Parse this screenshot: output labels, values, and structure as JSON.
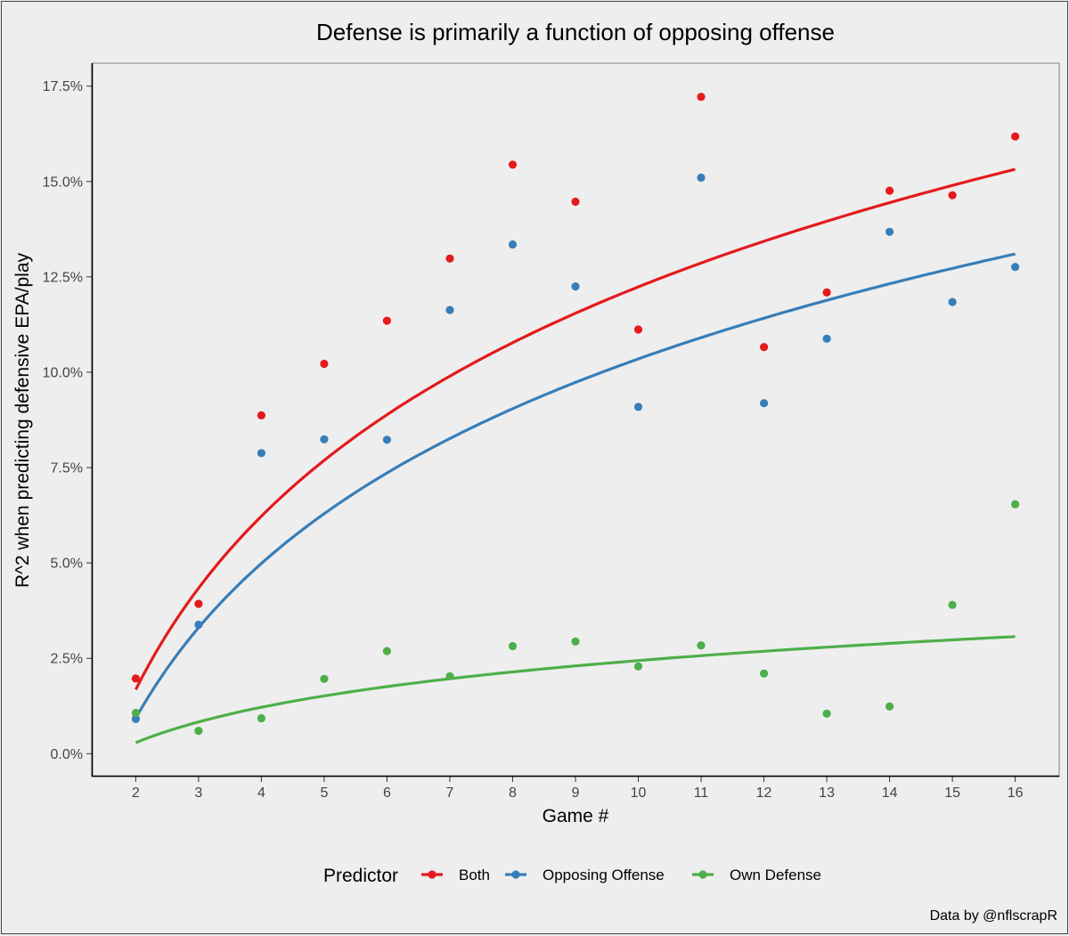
{
  "chart_data": {
    "type": "scatter",
    "title": "Defense is primarily a function of opposing offense",
    "xlabel": "Game #",
    "ylabel": "R^2 when predicting defensive EPA/play",
    "caption": "Data by @nflscrapR",
    "legend": {
      "title": "Predictor",
      "position": "bottom"
    },
    "xlim": [
      1.3,
      16.7
    ],
    "ylim": [
      -0.006,
      0.181
    ],
    "x_ticks": [
      2,
      3,
      4,
      5,
      6,
      7,
      8,
      9,
      10,
      11,
      12,
      13,
      14,
      15,
      16
    ],
    "x_tick_labels": [
      "2",
      "3",
      "4",
      "5",
      "6",
      "7",
      "8",
      "9",
      "10",
      "11",
      "12",
      "13",
      "14",
      "15",
      "16"
    ],
    "y_ticks": [
      0,
      0.025,
      0.05,
      0.075,
      0.1,
      0.125,
      0.15,
      0.175
    ],
    "y_tick_labels": [
      "0.0%",
      "2.5%",
      "5.0%",
      "7.5%",
      "10.0%",
      "12.5%",
      "15.0%",
      "17.5%"
    ],
    "grid": false,
    "x": [
      2,
      3,
      4,
      5,
      6,
      7,
      8,
      9,
      10,
      11,
      12,
      13,
      14,
      15,
      16
    ],
    "series": [
      {
        "name": "Both",
        "color": "#e41a1c",
        "values": [
          0.0197,
          0.0393,
          0.0887,
          0.1022,
          0.1135,
          0.1298,
          0.1544,
          0.1447,
          0.1112,
          0.1722,
          0.1066,
          0.1209,
          0.1476,
          0.1464,
          0.1618
        ],
        "trend": {
          "fit": "log",
          "x_start": 2,
          "x_end": 16,
          "at_start": 0.0168,
          "at_end": 0.1532
        }
      },
      {
        "name": "Opposing Offense",
        "color": "#377eb8",
        "values": [
          0.0091,
          0.0338,
          0.0788,
          0.0824,
          0.0823,
          0.1163,
          0.1335,
          0.1225,
          0.0909,
          0.151,
          0.0919,
          0.1088,
          0.1368,
          0.1184,
          0.1276
        ],
        "trend": {
          "fit": "log",
          "x_start": 2,
          "x_end": 16,
          "at_start": 0.0093,
          "at_end": 0.131
        }
      },
      {
        "name": "Own Defense",
        "color": "#4daf4a",
        "values": [
          0.0107,
          0.006,
          0.0093,
          0.0196,
          0.0269,
          0.0203,
          0.0282,
          0.0294,
          0.0229,
          0.0284,
          0.021,
          0.0105,
          0.0124,
          0.039,
          0.0654
        ],
        "trend": {
          "fit": "log",
          "x_start": 2,
          "x_end": 16,
          "at_start": 0.0029,
          "at_end": 0.0307
        }
      }
    ]
  }
}
